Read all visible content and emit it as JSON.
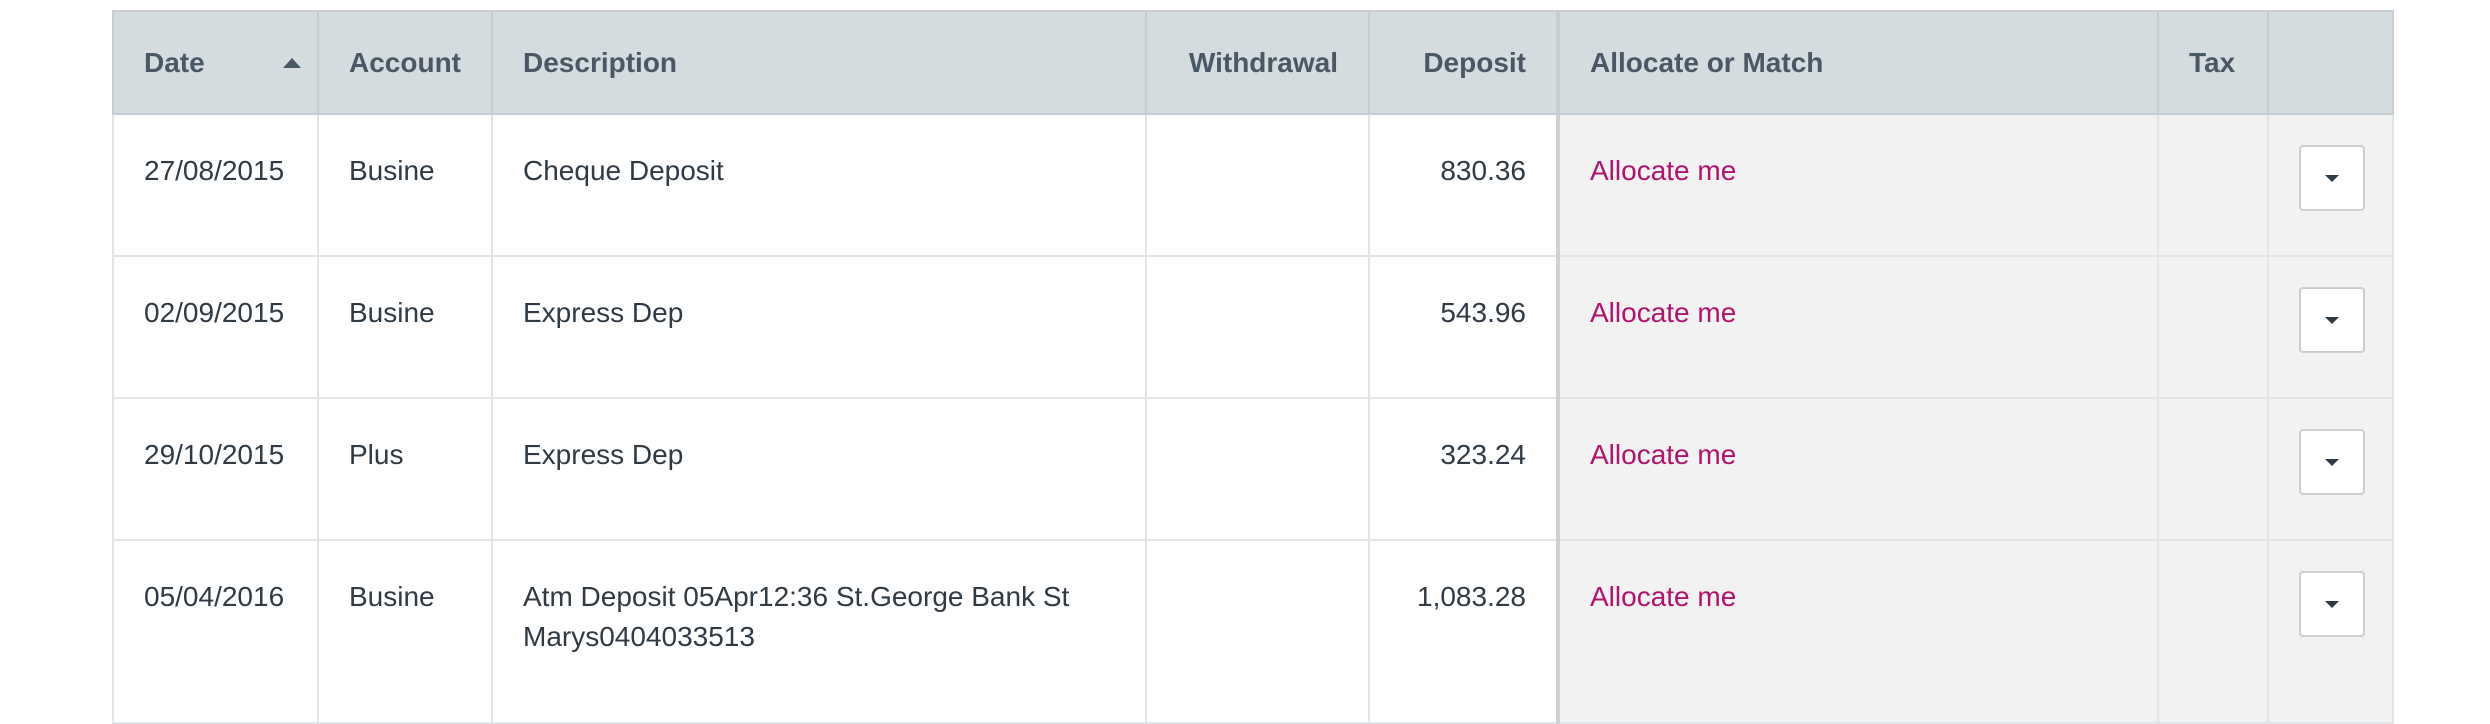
{
  "table": {
    "columns": {
      "date": "Date",
      "account": "Account",
      "description": "Description",
      "withdrawal": "Withdrawal",
      "deposit": "Deposit",
      "allocate": "Allocate or Match",
      "tax": "Tax"
    },
    "sort": {
      "column": "date",
      "direction": "ascending",
      "icon": "sort-asc-icon"
    },
    "rows": [
      {
        "date": "27/08/2015",
        "account": "Busine",
        "description": "Cheque Deposit",
        "withdrawal": "",
        "deposit": "830.36",
        "allocate": "Allocate me",
        "tax": ""
      },
      {
        "date": "02/09/2015",
        "account": "Busine",
        "description": "Express Dep",
        "withdrawal": "",
        "deposit": "543.96",
        "allocate": "Allocate me",
        "tax": ""
      },
      {
        "date": "29/10/2015",
        "account": "Plus",
        "description": "Express Dep",
        "withdrawal": "",
        "deposit": "323.24",
        "allocate": "Allocate me",
        "tax": ""
      },
      {
        "date": "05/04/2016",
        "account": "Busine",
        "description": "Atm Deposit 05Apr12:36 St.George Bank St Marys0404033513",
        "withdrawal": "",
        "deposit": "1,083.28",
        "allocate": "Allocate me",
        "tax": ""
      }
    ]
  },
  "colors": {
    "header_bg": "#d5dcdf",
    "header_text": "#4a5866",
    "link": "#b0126f",
    "shaded_bg": "#f2f2f2"
  }
}
